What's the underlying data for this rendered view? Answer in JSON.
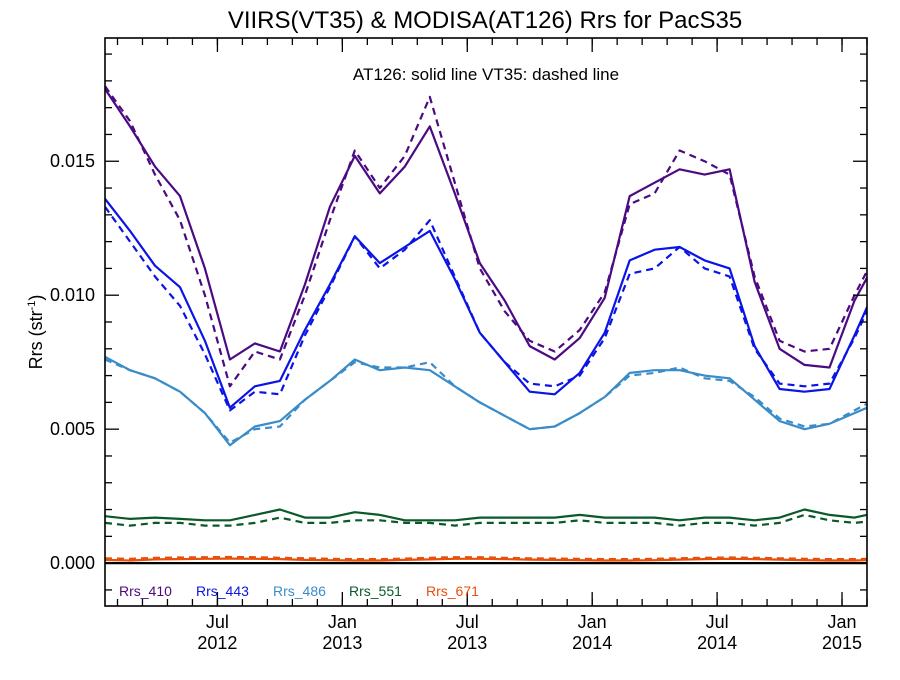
{
  "chart_data": {
    "type": "line",
    "title": "VIIRS(VT35) & MODISA(AT126)  Rrs for PacS35",
    "annotation": "AT126: solid line   VT35: dashed line",
    "ylabel_main": "Rrs (str",
    "ylabel_sup": "-1",
    "ylabel_tail": ")",
    "xlim": [
      0,
      30.5
    ],
    "ylim": [
      -0.0016,
      0.0196
    ],
    "y_ticks": [
      {
        "value": 0.0,
        "label": "0.000"
      },
      {
        "value": 0.005,
        "label": "0.005"
      },
      {
        "value": 0.01,
        "label": "0.010"
      },
      {
        "value": 0.015,
        "label": "0.015"
      }
    ],
    "x_ticks": [
      {
        "value": 4.5,
        "line1": "Jul",
        "line2": "2012"
      },
      {
        "value": 9.5,
        "line1": "Jan",
        "line2": "2013"
      },
      {
        "value": 14.5,
        "line1": "Jul",
        "line2": "2013"
      },
      {
        "value": 19.5,
        "line1": "Jan",
        "line2": "2014"
      },
      {
        "value": 24.5,
        "line1": "Jul",
        "line2": "2014"
      },
      {
        "value": 29.5,
        "line1": "Jan",
        "line2": "2015"
      }
    ],
    "zero_line": true,
    "series": [
      {
        "name": "Rrs_410",
        "color": "#4b0a82",
        "style": "solid",
        "x": [
          0,
          1,
          2,
          3,
          4,
          5,
          6,
          7,
          8,
          9,
          10,
          11,
          12,
          13,
          14,
          15,
          16,
          17,
          18,
          19,
          20,
          21,
          22,
          23,
          24,
          25,
          26,
          27,
          28,
          29,
          30,
          31
        ],
        "values": [
          0.0177,
          0.0163,
          0.0148,
          0.0137,
          0.011,
          0.0076,
          0.0082,
          0.0079,
          0.0104,
          0.0133,
          0.0152,
          0.0138,
          0.0148,
          0.0163,
          0.0138,
          0.0112,
          0.0098,
          0.0081,
          0.0076,
          0.0084,
          0.0099,
          0.0137,
          0.0142,
          0.0147,
          0.0145,
          0.0147,
          0.0105,
          0.008,
          0.0074,
          0.0073,
          0.0098,
          0.0115
        ]
      },
      {
        "name": "Rrs_410",
        "color": "#4b0a82",
        "style": "dashed",
        "x": [
          0,
          1,
          2,
          3,
          4,
          5,
          6,
          7,
          8,
          9,
          10,
          11,
          12,
          13,
          14,
          15,
          16,
          17,
          18,
          19,
          20,
          21,
          22,
          23,
          24,
          25,
          26,
          27,
          28,
          29,
          30,
          31
        ],
        "values": [
          0.0178,
          0.0165,
          0.0145,
          0.0128,
          0.01,
          0.0066,
          0.0079,
          0.0076,
          0.01,
          0.0128,
          0.0154,
          0.014,
          0.0152,
          0.0174,
          0.0142,
          0.011,
          0.0094,
          0.0083,
          0.0079,
          0.0087,
          0.0101,
          0.0134,
          0.0138,
          0.0154,
          0.015,
          0.0145,
          0.0107,
          0.0083,
          0.0079,
          0.008,
          0.01,
          0.0118
        ]
      },
      {
        "name": "Rrs_443",
        "color": "#0a14e6",
        "style": "solid",
        "x": [
          0,
          1,
          2,
          3,
          4,
          5,
          6,
          7,
          8,
          9,
          10,
          11,
          12,
          13,
          14,
          15,
          16,
          17,
          18,
          19,
          20,
          21,
          22,
          23,
          24,
          25,
          26,
          27,
          28,
          29,
          30,
          31
        ],
        "values": [
          0.0136,
          0.0124,
          0.0111,
          0.0103,
          0.0083,
          0.0058,
          0.0066,
          0.0068,
          0.0087,
          0.0104,
          0.0122,
          0.0112,
          0.0118,
          0.0124,
          0.0106,
          0.0086,
          0.0075,
          0.0064,
          0.0063,
          0.0071,
          0.0086,
          0.0113,
          0.0117,
          0.0118,
          0.0113,
          0.011,
          0.0081,
          0.0065,
          0.0064,
          0.0065,
          0.0085,
          0.0106
        ]
      },
      {
        "name": "Rrs_443",
        "color": "#0a14e6",
        "style": "dashed",
        "x": [
          0,
          1,
          2,
          3,
          4,
          5,
          6,
          7,
          8,
          9,
          10,
          11,
          12,
          13,
          14,
          15,
          16,
          17,
          18,
          19,
          20,
          21,
          22,
          23,
          24,
          25,
          26,
          27,
          28,
          29,
          30,
          31
        ],
        "values": [
          0.0133,
          0.012,
          0.0107,
          0.0096,
          0.0078,
          0.0057,
          0.0064,
          0.0063,
          0.0085,
          0.0103,
          0.0122,
          0.011,
          0.0117,
          0.0128,
          0.0107,
          0.0086,
          0.0075,
          0.0067,
          0.0066,
          0.007,
          0.0084,
          0.0108,
          0.011,
          0.0118,
          0.011,
          0.0107,
          0.008,
          0.0067,
          0.0066,
          0.0067,
          0.0084,
          0.0104
        ]
      },
      {
        "name": "Rrs_486",
        "color": "#3a8cc8",
        "style": "solid",
        "x": [
          0,
          1,
          2,
          3,
          4,
          5,
          6,
          7,
          8,
          9,
          10,
          11,
          12,
          13,
          14,
          15,
          16,
          17,
          18,
          19,
          20,
          21,
          22,
          23,
          24,
          25,
          26,
          27,
          28,
          29,
          30,
          31
        ],
        "values": [
          0.0077,
          0.0072,
          0.0069,
          0.0064,
          0.0056,
          0.0044,
          0.0051,
          0.0053,
          0.0061,
          0.0068,
          0.0076,
          0.0072,
          0.0073,
          0.0072,
          0.0066,
          0.006,
          0.0055,
          0.005,
          0.0051,
          0.0056,
          0.0062,
          0.0071,
          0.0072,
          0.0072,
          0.007,
          0.0069,
          0.0061,
          0.0053,
          0.005,
          0.0052,
          0.0056,
          0.006
        ]
      },
      {
        "name": "Rrs_486",
        "color": "#3a8cc8",
        "style": "dashed",
        "x": [
          0,
          1,
          2,
          3,
          4,
          5,
          6,
          7,
          8,
          9,
          10,
          11,
          12,
          13,
          14,
          15,
          16,
          17,
          18,
          19,
          20,
          21,
          22,
          23,
          24,
          25,
          26,
          27,
          28,
          29,
          30,
          31
        ],
        "values": [
          0.0076,
          0.0072,
          0.0069,
          0.0064,
          0.0056,
          0.0045,
          0.005,
          0.0051,
          0.0061,
          0.0068,
          0.0075,
          0.0073,
          0.0073,
          0.0075,
          0.0066,
          0.006,
          0.0055,
          0.005,
          0.0051,
          0.0056,
          0.0062,
          0.007,
          0.0071,
          0.0073,
          0.0069,
          0.0068,
          0.0062,
          0.0054,
          0.0051,
          0.0052,
          0.0057,
          0.0062
        ]
      },
      {
        "name": "Rrs_551",
        "color": "#0a5a28",
        "style": "solid",
        "x": [
          0,
          1,
          2,
          3,
          4,
          5,
          6,
          7,
          8,
          9,
          10,
          11,
          12,
          13,
          14,
          15,
          16,
          17,
          18,
          19,
          20,
          21,
          22,
          23,
          24,
          25,
          26,
          27,
          28,
          29,
          30,
          31
        ],
        "values": [
          0.00175,
          0.00165,
          0.0017,
          0.00165,
          0.0016,
          0.0016,
          0.0018,
          0.002,
          0.0017,
          0.0017,
          0.0019,
          0.0018,
          0.0016,
          0.0016,
          0.0016,
          0.0017,
          0.0017,
          0.0017,
          0.0017,
          0.0018,
          0.0017,
          0.0017,
          0.0017,
          0.0016,
          0.0017,
          0.0017,
          0.0016,
          0.0017,
          0.002,
          0.0018,
          0.0017,
          0.0019
        ]
      },
      {
        "name": "Rrs_551",
        "color": "#0a5a28",
        "style": "dashed",
        "x": [
          0,
          1,
          2,
          3,
          4,
          5,
          6,
          7,
          8,
          9,
          10,
          11,
          12,
          13,
          14,
          15,
          16,
          17,
          18,
          19,
          20,
          21,
          22,
          23,
          24,
          25,
          26,
          27,
          28,
          29,
          30,
          31
        ],
        "values": [
          0.0015,
          0.0014,
          0.0015,
          0.0015,
          0.0014,
          0.0014,
          0.0015,
          0.0017,
          0.0015,
          0.0015,
          0.0016,
          0.0016,
          0.0015,
          0.0015,
          0.0014,
          0.0015,
          0.0015,
          0.0015,
          0.0015,
          0.0016,
          0.0015,
          0.0015,
          0.0015,
          0.0014,
          0.0015,
          0.0015,
          0.0014,
          0.0015,
          0.0018,
          0.0016,
          0.0015,
          0.0016
        ]
      },
      {
        "name": "Rrs_671",
        "color": "#e6500a",
        "style": "solid",
        "x": [
          0,
          1,
          2,
          3,
          4,
          5,
          6,
          7,
          8,
          9,
          10,
          11,
          12,
          13,
          14,
          15,
          16,
          17,
          18,
          19,
          20,
          21,
          22,
          23,
          24,
          25,
          26,
          27,
          28,
          29,
          30,
          31
        ],
        "values": [
          0.00012,
          0.0001,
          0.00014,
          0.00015,
          0.00016,
          0.00017,
          0.00016,
          0.00015,
          0.00012,
          0.00011,
          0.0001,
          0.0001,
          0.00012,
          0.00014,
          0.00016,
          0.00016,
          0.00015,
          0.00013,
          0.00012,
          0.00011,
          0.0001,
          0.0001,
          0.00011,
          0.00013,
          0.00015,
          0.00016,
          0.00015,
          0.00013,
          0.00011,
          0.0001,
          0.0001,
          0.00012
        ]
      },
      {
        "name": "Rrs_671",
        "color": "#e6500a",
        "style": "dashed",
        "x": [
          0,
          1,
          2,
          3,
          4,
          5,
          6,
          7,
          8,
          9,
          10,
          11,
          12,
          13,
          14,
          15,
          16,
          17,
          18,
          19,
          20,
          21,
          22,
          23,
          24,
          25,
          26,
          27,
          28,
          29,
          30,
          31
        ],
        "values": [
          0.00018,
          0.00016,
          0.0002,
          0.00021,
          0.00022,
          0.00023,
          0.00022,
          0.0002,
          0.00018,
          0.00016,
          0.00015,
          0.00015,
          0.00017,
          0.0002,
          0.00022,
          0.00022,
          0.0002,
          0.00018,
          0.00017,
          0.00016,
          0.00015,
          0.00015,
          0.00016,
          0.00018,
          0.0002,
          0.00021,
          0.0002,
          0.00018,
          0.00016,
          0.00015,
          0.00015,
          0.00017
        ]
      }
    ],
    "legend": [
      {
        "label": "Rrs_410",
        "color": "#4b0a82"
      },
      {
        "label": "Rrs_443",
        "color": "#0a14e6"
      },
      {
        "label": "Rrs_486",
        "color": "#3a8cc8"
      },
      {
        "label": "Rrs_551",
        "color": "#0a5a28"
      },
      {
        "label": "Rrs_671",
        "color": "#e6500a"
      }
    ]
  }
}
